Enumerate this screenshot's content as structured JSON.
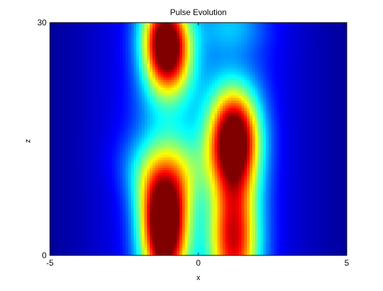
{
  "chart_data": {
    "type": "heatmap",
    "title": "Pulse Evolution",
    "xlabel": "x",
    "ylabel": "z",
    "xlim": [
      -5,
      5
    ],
    "ylim": [
      0,
      30
    ],
    "x_ticks": [
      "-5",
      "0",
      "5"
    ],
    "y_ticks": [
      "0",
      "30"
    ],
    "colormap": "jet",
    "grid": false,
    "legend": "none",
    "field_description": "intensity of two pulses; left pulse near x=-1.2, right pulse near x=1.2",
    "features": [
      {
        "name": "left-pulse-peak",
        "x": -1.2,
        "z": 27,
        "intensity": 1.0
      },
      {
        "name": "right-pulse-peak",
        "x": 1.2,
        "z": 15,
        "intensity": 1.0
      },
      {
        "name": "left-pulse-base",
        "x": -1.1,
        "z": 3,
        "intensity": 0.72
      },
      {
        "name": "right-pulse-base",
        "x": 1.2,
        "z": 3,
        "intensity": 0.75
      }
    ]
  }
}
